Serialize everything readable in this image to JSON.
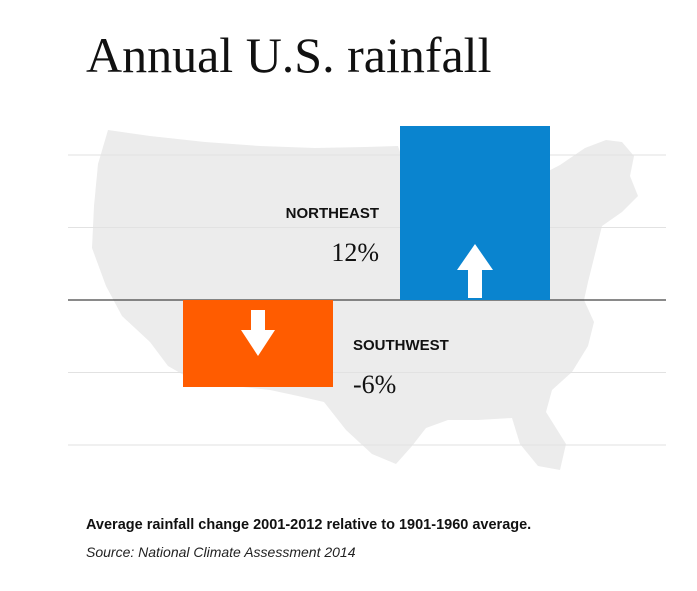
{
  "chart_data": {
    "type": "bar",
    "title": "Annual U.S. rainfall",
    "categories": [
      "NORTHEAST",
      "SOUTHWEST"
    ],
    "values": [
      12,
      -6
    ],
    "value_labels": [
      "12%",
      "-6%"
    ],
    "colors": [
      "#0a84cf",
      "#ff5c00"
    ],
    "ylim": [
      -12,
      16
    ],
    "baseline": 0,
    "gridlines": [
      -10,
      -5,
      5,
      10
    ],
    "grid": true,
    "legend": "none",
    "caption": "Average rainfall change 2001-2012 relative to 1901-1960 average.",
    "source": "Source: National Climate Assessment 2014"
  },
  "icons": {
    "up": "arrow-up-icon",
    "down": "arrow-down-icon",
    "background": "us-map-silhouette"
  }
}
